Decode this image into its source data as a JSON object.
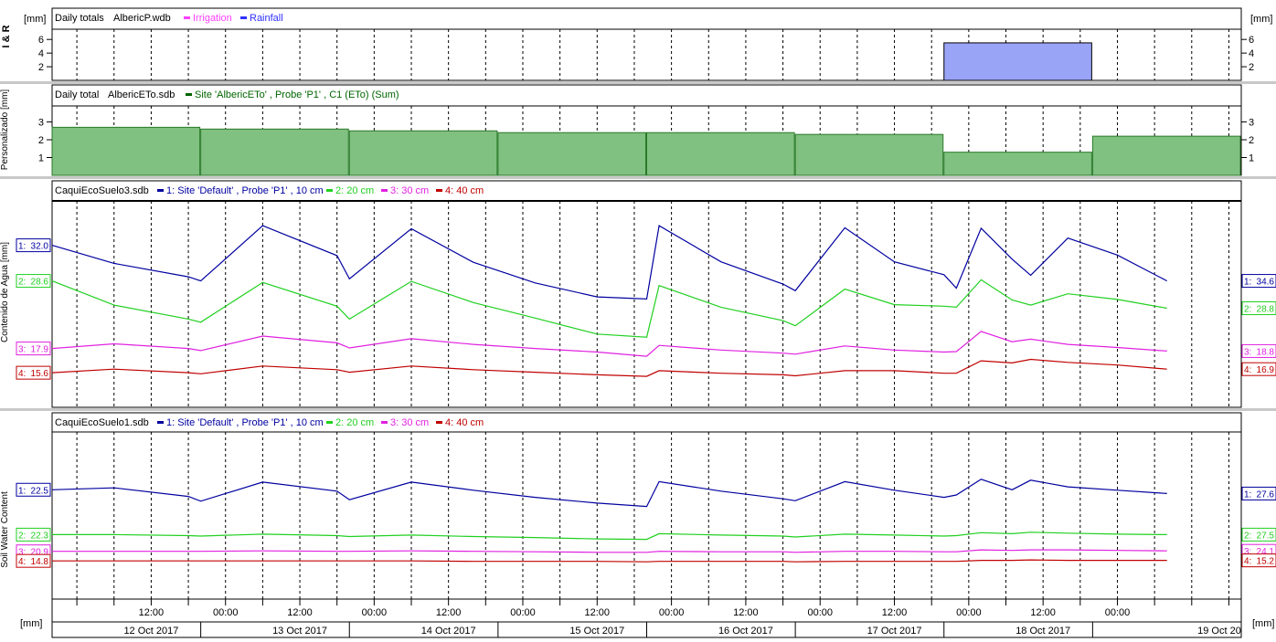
{
  "chart_data": [
    {
      "type": "bar",
      "panel": "rain",
      "side_label": "I & R",
      "unit_left": "[mm]",
      "unit_right": "[mm]",
      "header": "Daily totals",
      "file": "AlbericP.wdb",
      "legend": [
        {
          "name": "Irrigation",
          "color": "#ff40ff"
        },
        {
          "name": "Rainfall",
          "color": "#3030ff"
        }
      ],
      "y_ticks": [
        2,
        4,
        6
      ],
      "ylim": [
        0,
        7.5
      ],
      "bar_color": "#9aa4f6",
      "bars": [
        {
          "from": "2017-10-17T20:00",
          "to": "2017-10-18T20:00",
          "value": 5.5
        }
      ]
    },
    {
      "type": "bar",
      "panel": "eto",
      "side_label": "Personalizado [mm]",
      "header": "Daily total",
      "file": "AlbericETo.sdb",
      "legend": [
        {
          "name": "Site 'AlbericETo' , Probe 'P1' , C1 (ETo) (Sum)",
          "color": "#006400"
        }
      ],
      "y_ticks": [
        1,
        2,
        3
      ],
      "ylim": [
        0,
        3.9
      ],
      "bar_color": "#80c080",
      "bar_edge": "#2a7a2a",
      "bars": [
        {
          "from": "2017-10-11T20:00",
          "to": "2017-10-12T20:00",
          "value": 2.7
        },
        {
          "from": "2017-10-12T20:00",
          "to": "2017-10-13T20:00",
          "value": 2.6
        },
        {
          "from": "2017-10-13T20:00",
          "to": "2017-10-14T20:00",
          "value": 2.5
        },
        {
          "from": "2017-10-14T20:00",
          "to": "2017-10-15T20:00",
          "value": 2.4
        },
        {
          "from": "2017-10-15T20:00",
          "to": "2017-10-16T20:00",
          "value": 2.4
        },
        {
          "from": "2017-10-16T20:00",
          "to": "2017-10-17T20:00",
          "value": 2.3
        },
        {
          "from": "2017-10-17T20:00",
          "to": "2017-10-18T20:00",
          "value": 1.3
        },
        {
          "from": "2017-10-18T20:00",
          "to": "2017-10-19T20:00",
          "value": 2.2
        }
      ]
    },
    {
      "type": "line",
      "panel": "soil3",
      "side_label": "Contenido de Agua [mm]",
      "file": "CaquiEcoSuelo3.sdb",
      "series": [
        {
          "name": "1: Site 'Default' , Probe 'P1' , 10 cm",
          "short": "1:",
          "color": "#0000a0",
          "start_label": "32.0",
          "end_label": "34.6",
          "x": [
            "2017-10-11T20:00",
            "2017-10-12T06:00",
            "2017-10-12T18:00",
            "2017-10-12T20:00",
            "2017-10-13T06:00",
            "2017-10-13T18:00",
            "2017-10-13T20:00",
            "2017-10-14T06:00",
            "2017-10-14T16:00",
            "2017-10-15T02:00",
            "2017-10-15T12:00",
            "2017-10-15T20:00",
            "2017-10-15T22:00",
            "2017-10-16T08:00",
            "2017-10-16T18:00",
            "2017-10-16T20:00",
            "2017-10-17T04:00",
            "2017-10-17T12:00",
            "2017-10-17T20:00",
            "2017-10-17T22:00",
            "2017-10-18T02:00",
            "2017-10-18T07:00",
            "2017-10-18T10:00",
            "2017-10-18T16:00",
            "2017-10-19T00:00",
            "2017-10-19T08:00"
          ],
          "y": [
            31.4,
            27.9,
            25.3,
            24.5,
            35.2,
            29.4,
            24.9,
            34.6,
            28.1,
            24.1,
            21.4,
            21.0,
            35.2,
            28.2,
            23.9,
            22.6,
            34.8,
            28.2,
            25.7,
            23.1,
            34.7,
            28.7,
            25.6,
            32.8,
            29.5,
            24.5
          ]
        },
        {
          "name": "2: 20 cm",
          "short": "2:",
          "color": "#20d020",
          "start_label": "28.6",
          "end_label": "28.8",
          "x": [
            "2017-10-11T20:00",
            "2017-10-12T06:00",
            "2017-10-12T18:00",
            "2017-10-12T20:00",
            "2017-10-13T06:00",
            "2017-10-13T18:00",
            "2017-10-13T20:00",
            "2017-10-14T06:00",
            "2017-10-14T16:00",
            "2017-10-15T02:00",
            "2017-10-15T12:00",
            "2017-10-15T20:00",
            "2017-10-15T22:00",
            "2017-10-16T08:00",
            "2017-10-16T18:00",
            "2017-10-16T20:00",
            "2017-10-17T04:00",
            "2017-10-17T12:00",
            "2017-10-17T20:00",
            "2017-10-17T22:00",
            "2017-10-18T02:00",
            "2017-10-18T07:00",
            "2017-10-18T10:00",
            "2017-10-18T16:00",
            "2017-10-19T00:00",
            "2017-10-19T08:00"
          ],
          "y": [
            24.5,
            19.8,
            17.1,
            16.5,
            24.2,
            19.6,
            17.1,
            24.4,
            20.3,
            17.3,
            14.2,
            13.6,
            23.6,
            19.4,
            16.8,
            15.8,
            22.9,
            19.9,
            19.6,
            19.4,
            24.7,
            20.8,
            19.8,
            22.0,
            20.9,
            19.2
          ]
        },
        {
          "name": "3: 30 cm",
          "short": "3:",
          "color": "#e020e0",
          "start_label": "17.9",
          "end_label": "18.8",
          "x": [
            "2017-10-11T20:00",
            "2017-10-12T06:00",
            "2017-10-12T18:00",
            "2017-10-12T20:00",
            "2017-10-13T06:00",
            "2017-10-13T18:00",
            "2017-10-13T20:00",
            "2017-10-14T06:00",
            "2017-10-14T16:00",
            "2017-10-15T02:00",
            "2017-10-15T12:00",
            "2017-10-15T20:00",
            "2017-10-15T22:00",
            "2017-10-16T08:00",
            "2017-10-16T18:00",
            "2017-10-16T20:00",
            "2017-10-17T04:00",
            "2017-10-17T12:00",
            "2017-10-17T20:00",
            "2017-10-17T22:00",
            "2017-10-18T02:00",
            "2017-10-18T07:00",
            "2017-10-18T10:00",
            "2017-10-18T16:00",
            "2017-10-19T00:00",
            "2017-10-19T08:00"
          ],
          "y": [
            11.4,
            12.3,
            11.4,
            11.0,
            13.8,
            12.5,
            11.5,
            13.3,
            12.2,
            11.4,
            10.7,
            9.9,
            12.0,
            11.1,
            10.5,
            10.3,
            11.9,
            11.1,
            10.7,
            10.8,
            14.7,
            12.7,
            13.2,
            12.2,
            11.6,
            10.9
          ]
        },
        {
          "name": "4: 40 cm",
          "short": "4:",
          "color": "#c00000",
          "start_label": "15.6",
          "end_label": "16.9",
          "x": [
            "2017-10-11T20:00",
            "2017-10-12T06:00",
            "2017-10-12T18:00",
            "2017-10-12T20:00",
            "2017-10-13T06:00",
            "2017-10-13T18:00",
            "2017-10-13T20:00",
            "2017-10-14T06:00",
            "2017-10-14T16:00",
            "2017-10-15T02:00",
            "2017-10-15T12:00",
            "2017-10-15T20:00",
            "2017-10-15T22:00",
            "2017-10-16T08:00",
            "2017-10-16T18:00",
            "2017-10-16T20:00",
            "2017-10-17T04:00",
            "2017-10-17T12:00",
            "2017-10-17T20:00",
            "2017-10-17T22:00",
            "2017-10-18T02:00",
            "2017-10-18T07:00",
            "2017-10-18T10:00",
            "2017-10-18T16:00",
            "2017-10-19T00:00",
            "2017-10-19T08:00"
          ],
          "y": [
            6.7,
            7.4,
            6.7,
            6.5,
            8.0,
            7.3,
            6.8,
            8.0,
            7.3,
            6.8,
            6.3,
            6.0,
            7.1,
            6.6,
            6.3,
            6.1,
            7.1,
            7.1,
            6.6,
            6.6,
            9.0,
            8.6,
            9.3,
            8.7,
            8.2,
            7.4
          ]
        }
      ],
      "ylim": [
        0,
        40
      ]
    },
    {
      "type": "line",
      "panel": "soil1",
      "side_label": "Soil Water Content",
      "file": "CaquiEcoSuelo1.sdb",
      "series": [
        {
          "name": "1: Site 'Default' , Probe 'P1' , 10 cm",
          "short": "1:",
          "color": "#0000a0",
          "start_label": "22.5",
          "end_label": "27.6",
          "x": [
            "2017-10-11T20:00",
            "2017-10-12T06:00",
            "2017-10-12T18:00",
            "2017-10-12T20:00",
            "2017-10-13T06:00",
            "2017-10-13T18:00",
            "2017-10-13T20:00",
            "2017-10-14T06:00",
            "2017-10-14T16:00",
            "2017-10-15T02:00",
            "2017-10-15T12:00",
            "2017-10-15T20:00",
            "2017-10-15T22:00",
            "2017-10-16T08:00",
            "2017-10-16T18:00",
            "2017-10-16T20:00",
            "2017-10-17T04:00",
            "2017-10-17T12:00",
            "2017-10-17T20:00",
            "2017-10-17T22:00",
            "2017-10-18T02:00",
            "2017-10-18T07:00",
            "2017-10-18T10:00",
            "2017-10-18T16:00",
            "2017-10-19T00:00",
            "2017-10-19T08:00"
          ],
          "y": [
            27.9,
            28.3,
            26.5,
            25.5,
            29.5,
            27.6,
            25.8,
            29.5,
            27.8,
            26.3,
            25.1,
            24.4,
            29.6,
            27.6,
            26.0,
            25.6,
            29.6,
            27.8,
            26.3,
            26.8,
            30.1,
            27.9,
            29.9,
            28.5,
            27.8,
            27.1
          ]
        },
        {
          "name": "2: 20 cm",
          "short": "2:",
          "color": "#20d020",
          "start_label": "22.3",
          "end_label": "27.5",
          "x": [
            "2017-10-11T20:00",
            "2017-10-12T06:00",
            "2017-10-12T18:00",
            "2017-10-12T20:00",
            "2017-10-13T06:00",
            "2017-10-13T18:00",
            "2017-10-13T20:00",
            "2017-10-14T06:00",
            "2017-10-14T16:00",
            "2017-10-15T02:00",
            "2017-10-15T12:00",
            "2017-10-15T20:00",
            "2017-10-15T22:00",
            "2017-10-16T08:00",
            "2017-10-16T18:00",
            "2017-10-16T20:00",
            "2017-10-17T04:00",
            "2017-10-17T12:00",
            "2017-10-17T20:00",
            "2017-10-17T22:00",
            "2017-10-18T02:00",
            "2017-10-18T07:00",
            "2017-10-18T10:00",
            "2017-10-18T16:00",
            "2017-10-19T00:00",
            "2017-10-19T08:00"
          ],
          "y": [
            18.5,
            18.5,
            18.3,
            18.2,
            18.6,
            18.3,
            18.1,
            18.4,
            18.1,
            17.9,
            17.6,
            17.5,
            18.7,
            18.4,
            18.2,
            18.0,
            18.6,
            18.4,
            18.2,
            18.3,
            18.9,
            18.7,
            19.0,
            18.8,
            18.6,
            18.5
          ]
        },
        {
          "name": "3: 30 cm",
          "short": "3:",
          "color": "#e020e0",
          "start_label": "20.9",
          "end_label": "24.1",
          "x": [
            "2017-10-11T20:00",
            "2017-10-12T06:00",
            "2017-10-12T18:00",
            "2017-10-12T20:00",
            "2017-10-13T06:00",
            "2017-10-13T18:00",
            "2017-10-13T20:00",
            "2017-10-14T06:00",
            "2017-10-14T16:00",
            "2017-10-15T02:00",
            "2017-10-15T12:00",
            "2017-10-15T20:00",
            "2017-10-15T22:00",
            "2017-10-16T08:00",
            "2017-10-16T18:00",
            "2017-10-16T20:00",
            "2017-10-17T04:00",
            "2017-10-17T12:00",
            "2017-10-17T20:00",
            "2017-10-17T22:00",
            "2017-10-18T02:00",
            "2017-10-18T07:00",
            "2017-10-18T10:00",
            "2017-10-18T16:00",
            "2017-10-19T00:00",
            "2017-10-19T08:00"
          ],
          "y": [
            15.0,
            15.0,
            15.0,
            15.0,
            15.1,
            15.0,
            15.0,
            15.1,
            15.0,
            14.9,
            14.8,
            14.8,
            15.0,
            14.9,
            14.9,
            14.8,
            15.0,
            15.0,
            14.9,
            14.9,
            15.3,
            15.2,
            15.3,
            15.3,
            15.2,
            15.1
          ]
        },
        {
          "name": "4: 40 cm",
          "short": "4:",
          "color": "#c00000",
          "start_label": "14.8",
          "end_label": "15.2",
          "x": [
            "2017-10-11T20:00",
            "2017-10-12T06:00",
            "2017-10-12T18:00",
            "2017-10-12T20:00",
            "2017-10-13T06:00",
            "2017-10-13T18:00",
            "2017-10-13T20:00",
            "2017-10-14T06:00",
            "2017-10-14T16:00",
            "2017-10-15T02:00",
            "2017-10-15T12:00",
            "2017-10-15T20:00",
            "2017-10-15T22:00",
            "2017-10-16T08:00",
            "2017-10-16T18:00",
            "2017-10-16T20:00",
            "2017-10-17T04:00",
            "2017-10-17T12:00",
            "2017-10-17T20:00",
            "2017-10-17T22:00",
            "2017-10-18T02:00",
            "2017-10-18T07:00",
            "2017-10-18T10:00",
            "2017-10-18T16:00",
            "2017-10-19T00:00",
            "2017-10-19T08:00"
          ],
          "y": [
            13.0,
            13.0,
            13.0,
            13.0,
            13.0,
            13.0,
            13.0,
            13.0,
            12.9,
            12.9,
            12.9,
            12.8,
            12.9,
            12.9,
            12.9,
            12.8,
            12.9,
            12.9,
            12.9,
            12.9,
            13.1,
            13.1,
            13.2,
            13.1,
            13.1,
            13.1
          ]
        }
      ],
      "ylim": [
        5,
        40
      ]
    }
  ],
  "time_axis": {
    "start": "2017-10-11T20:00",
    "end": "2017-10-19T20:00",
    "gridline_hours": [
      0,
      6,
      12,
      18
    ],
    "tick_labels": [
      {
        "t": "2017-10-12T12:00",
        "label": "12:00"
      },
      {
        "t": "2017-10-13T00:00",
        "label": "00:00"
      },
      {
        "t": "2017-10-13T12:00",
        "label": "12:00"
      },
      {
        "t": "2017-10-14T00:00",
        "label": "00:00"
      },
      {
        "t": "2017-10-14T12:00",
        "label": "12:00"
      },
      {
        "t": "2017-10-15T00:00",
        "label": "00:00"
      },
      {
        "t": "2017-10-15T12:00",
        "label": "12:00"
      },
      {
        "t": "2017-10-16T00:00",
        "label": "00:00"
      },
      {
        "t": "2017-10-16T12:00",
        "label": "12:00"
      },
      {
        "t": "2017-10-17T00:00",
        "label": "00:00"
      },
      {
        "t": "2017-10-17T12:00",
        "label": "12:00"
      },
      {
        "t": "2017-10-18T00:00",
        "label": "00:00"
      },
      {
        "t": "2017-10-18T12:00",
        "label": "12:00"
      },
      {
        "t": "2017-10-19T00:00",
        "label": "00:00"
      }
    ],
    "date_labels": [
      {
        "t": "2017-10-12T12:00",
        "label": "12 Oct 2017"
      },
      {
        "t": "2017-10-13T12:00",
        "label": "13 Oct 2017"
      },
      {
        "t": "2017-10-14T12:00",
        "label": "14 Oct 2017"
      },
      {
        "t": "2017-10-15T12:00",
        "label": "15 Oct 2017"
      },
      {
        "t": "2017-10-16T12:00",
        "label": "16 Oct 2017"
      },
      {
        "t": "2017-10-17T12:00",
        "label": "17 Oct 2017"
      },
      {
        "t": "2017-10-18T12:00",
        "label": "18 Oct 2017"
      },
      {
        "t": "2017-10-19T12:00",
        "label": "19 Oct 20"
      }
    ],
    "unit_left": "[mm]",
    "unit_right": "[mm]"
  }
}
